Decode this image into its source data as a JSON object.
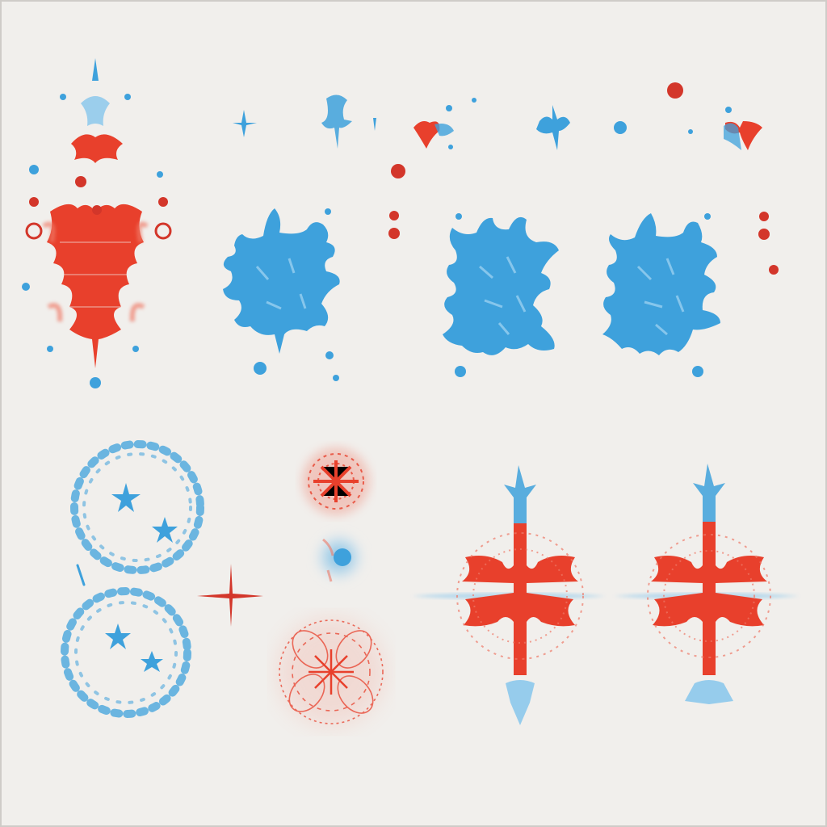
{
  "palette": {
    "background": "#f1efec",
    "frame": "#cfccc8",
    "red": "#e8402c",
    "red_soft": "#ef7a68",
    "red_dot": "#d3362a",
    "blue": "#3ea1dc",
    "blue_soft": "#86c6ec",
    "blue_pale": "#b9def3"
  },
  "sheet": {
    "kind": "decorative snowflake / ink-blot illustration sheet",
    "rows": 2,
    "motifs_top_row": 4,
    "motifs_bottom_row": 5
  },
  "motifs": [
    {
      "id": "red-tall-snowflake",
      "color": "red",
      "accent": "blue"
    },
    {
      "id": "blue-blot-1",
      "color": "blue"
    },
    {
      "id": "blue-blot-2",
      "color": "blue"
    },
    {
      "id": "blue-blot-3",
      "color": "blue"
    },
    {
      "id": "blue-lace-wreath-upper",
      "color": "blue"
    },
    {
      "id": "blue-lace-wreath-lower",
      "color": "blue"
    },
    {
      "id": "red-cross-sparkle",
      "color": "red"
    },
    {
      "id": "red-lace-rosette-upper",
      "color": "red"
    },
    {
      "id": "blue-glow-dot",
      "color": "blue"
    },
    {
      "id": "red-lace-rosette-lower",
      "color": "red"
    },
    {
      "id": "red-blue-star-1",
      "color": "red",
      "accent": "blue"
    },
    {
      "id": "red-blue-star-2",
      "color": "red",
      "accent": "blue"
    }
  ]
}
